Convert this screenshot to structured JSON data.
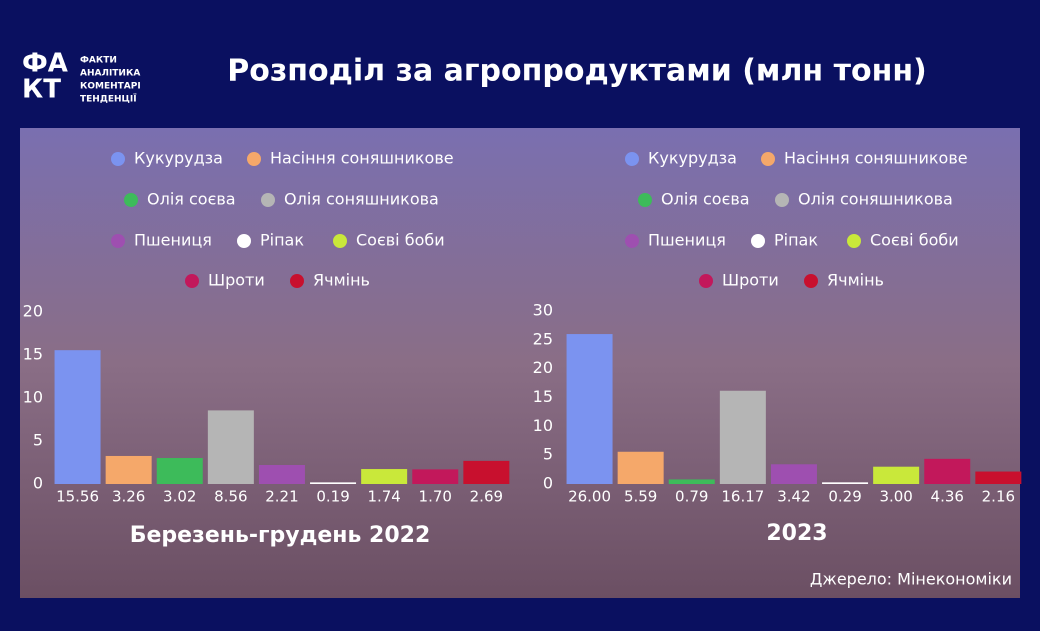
{
  "header": {
    "title": "Розподіл за агропродуктами (млн тонн)",
    "logo": {
      "mark": [
        "ФА",
        "КТ"
      ],
      "tagline": [
        "ФАКТИ",
        "АНАЛІТИКА",
        "КОМЕНТАРІ",
        "ТЕНДЕНЦІЇ"
      ]
    }
  },
  "chart_data": [
    {
      "type": "bar",
      "title": "Березень-грудень 2022",
      "categories": [
        "Кукурудза",
        "Насіння соняшникове",
        "Олія соєва",
        "Олія соняшникова",
        "Пшениця",
        "Ріпак",
        "Соєві боби",
        "Шроти",
        "Ячмінь"
      ],
      "values": [
        15.56,
        3.26,
        3.02,
        8.56,
        2.21,
        0.19,
        1.74,
        1.7,
        2.69
      ],
      "value_labels": [
        "15.56",
        "3.26",
        "3.02",
        "8.56",
        "2.21",
        "0.19",
        "1.74",
        "1.70",
        "2.69"
      ],
      "colors": [
        "#7b93f0",
        "#f5a86a",
        "#3dbb5a",
        "#b5b5b5",
        "#9e4fb0",
        "#ffffff",
        "#c9e83a",
        "#c2185b",
        "#c8102e"
      ],
      "ylim": [
        0,
        20
      ],
      "yticks": [
        0,
        5,
        10,
        15,
        20
      ],
      "grid": false
    },
    {
      "type": "bar",
      "title": "2023",
      "categories": [
        "Кукурудза",
        "Насіння соняшникове",
        "Олія соєва",
        "Олія соняшникова",
        "Пшениця",
        "Ріпак",
        "Соєві боби",
        "Шроти",
        "Ячмінь"
      ],
      "values": [
        26.0,
        5.59,
        0.79,
        16.17,
        3.42,
        0.29,
        3.0,
        4.36,
        2.16
      ],
      "value_labels": [
        "26.00",
        "5.59",
        "0.79",
        "16.17",
        "3.42",
        "0.29",
        "3.00",
        "4.36",
        "2.16"
      ],
      "colors": [
        "#7b93f0",
        "#f5a86a",
        "#3dbb5a",
        "#b5b5b5",
        "#9e4fb0",
        "#ffffff",
        "#c9e83a",
        "#c2185b",
        "#c8102e"
      ],
      "ylim": [
        0,
        30
      ],
      "yticks": [
        0,
        5,
        10,
        15,
        20,
        25,
        30
      ],
      "grid": false
    }
  ],
  "source": "Джерело: Мінекономіки"
}
